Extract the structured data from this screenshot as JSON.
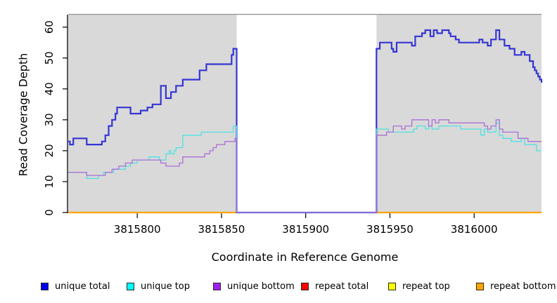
{
  "chart_data": {
    "type": "line",
    "subtype": "step-after",
    "title": "",
    "xlabel": "Coordinate in Reference Genome",
    "ylabel": "Read Coverage Depth",
    "xlim": [
      3815759,
      3816040
    ],
    "ylim": [
      0,
      64
    ],
    "xticks": [
      3815800,
      3815850,
      3815900,
      3815950,
      3816000
    ],
    "yticks": [
      0,
      10,
      20,
      30,
      40,
      50,
      60
    ],
    "grid": "off",
    "legend_position": "bottom",
    "background": {
      "shaded_color": "#d9d9d9",
      "shaded_regions": [
        [
          3815759,
          3815859
        ],
        [
          3815942,
          3816040
        ]
      ],
      "gap_region": [
        3815859,
        3815942
      ],
      "top_border_color": "#8f8f8f",
      "axis_color": "#000000"
    },
    "series": [
      {
        "name": "unique total",
        "legend_color": "#0000ee",
        "line_color": "#3535d4",
        "line_width": 2.2,
        "z": 4,
        "segments": [
          [
            [
              3815759,
              23
            ],
            [
              3815760,
              22
            ],
            [
              3815762,
              24
            ],
            [
              3815770,
              22
            ],
            [
              3815777,
              22
            ],
            [
              3815779,
              23
            ],
            [
              3815781,
              25
            ],
            [
              3815783,
              28
            ],
            [
              3815785,
              30
            ],
            [
              3815787,
              32
            ],
            [
              3815788,
              34
            ],
            [
              3815795,
              34
            ],
            [
              3815796,
              32
            ],
            [
              3815801,
              32
            ],
            [
              3815802,
              33
            ],
            [
              3815806,
              34
            ],
            [
              3815809,
              35
            ],
            [
              3815813,
              35
            ],
            [
              3815814,
              41
            ],
            [
              3815817,
              37
            ],
            [
              3815820,
              39
            ],
            [
              3815823,
              41
            ],
            [
              3815827,
              43
            ],
            [
              3815836,
              43
            ],
            [
              3815837,
              46
            ],
            [
              3815841,
              48
            ],
            [
              3815855,
              48
            ],
            [
              3815856,
              51
            ],
            [
              3815857,
              53
            ],
            [
              3815859,
              0
            ],
            [
              3815942,
              0
            ],
            [
              3815942,
              53
            ],
            [
              3815944,
              55
            ],
            [
              3815950,
              55
            ],
            [
              3815951,
              53
            ],
            [
              3815952,
              52
            ],
            [
              3815954,
              55
            ],
            [
              3815963,
              54
            ],
            [
              3815965,
              57
            ],
            [
              3815969,
              58
            ],
            [
              3815971,
              59
            ],
            [
              3815974,
              57
            ],
            [
              3815976,
              59
            ],
            [
              3815978,
              58
            ],
            [
              3815981,
              59
            ],
            [
              3815985,
              58
            ],
            [
              3815986,
              57
            ],
            [
              3815989,
              56
            ],
            [
              3815991,
              55
            ],
            [
              3816002,
              55
            ],
            [
              3816003,
              56
            ],
            [
              3816005,
              55
            ],
            [
              3816008,
              54
            ],
            [
              3816010,
              56
            ],
            [
              3816013,
              59
            ],
            [
              3816015,
              56
            ],
            [
              3816018,
              54
            ],
            [
              3816021,
              53
            ],
            [
              3816024,
              51
            ],
            [
              3816028,
              52
            ],
            [
              3816030,
              51
            ],
            [
              3816033,
              49
            ],
            [
              3816035,
              47
            ],
            [
              3816036,
              46
            ],
            [
              3816037,
              45
            ],
            [
              3816038,
              44
            ],
            [
              3816039,
              43
            ],
            [
              3816040,
              42
            ]
          ]
        ]
      },
      {
        "name": "unique top",
        "legend_color": "#00ffff",
        "line_color": "#4fe2e2",
        "line_width": 1.3,
        "z": 5,
        "segments": [
          [
            [
              3815759,
              13
            ],
            [
              3815770,
              11
            ],
            [
              3815777,
              12
            ],
            [
              3815780,
              13
            ],
            [
              3815786,
              14
            ],
            [
              3815793,
              15
            ],
            [
              3815796,
              16
            ],
            [
              3815800,
              17
            ],
            [
              3815807,
              18
            ],
            [
              3815813,
              17
            ],
            [
              3815817,
              19
            ],
            [
              3815819,
              20
            ],
            [
              3815820,
              19
            ],
            [
              3815822,
              20
            ],
            [
              3815823,
              21
            ],
            [
              3815827,
              25
            ],
            [
              3815838,
              26
            ],
            [
              3815856,
              26
            ],
            [
              3815857,
              28
            ],
            [
              3815859,
              0
            ],
            [
              3815942,
              0
            ],
            [
              3815942,
              27
            ],
            [
              3815949,
              26
            ],
            [
              3815960,
              26
            ],
            [
              3815964,
              27
            ],
            [
              3815966,
              28
            ],
            [
              3815971,
              27
            ],
            [
              3815973,
              28
            ],
            [
              3815975,
              27
            ],
            [
              3815979,
              28
            ],
            [
              3815990,
              28
            ],
            [
              3815992,
              27
            ],
            [
              3816000,
              27
            ],
            [
              3816002,
              27
            ],
            [
              3816004,
              25
            ],
            [
              3816006,
              27
            ],
            [
              3816008,
              26
            ],
            [
              3816012,
              26
            ],
            [
              3816013,
              29
            ],
            [
              3816015,
              25
            ],
            [
              3816017,
              24
            ],
            [
              3816022,
              23
            ],
            [
              3816028,
              24
            ],
            [
              3816030,
              22
            ],
            [
              3816033,
              22
            ],
            [
              3816037,
              20
            ],
            [
              3816040,
              20
            ]
          ]
        ]
      },
      {
        "name": "unique bottom",
        "legend_color": "#a020f0",
        "line_color": "#ab6fd6",
        "line_width": 1.3,
        "z": 6,
        "segments": [
          [
            [
              3815759,
              13
            ],
            [
              3815770,
              12
            ],
            [
              3815777,
              12
            ],
            [
              3815781,
              13
            ],
            [
              3815785,
              14
            ],
            [
              3815789,
              15
            ],
            [
              3815793,
              16
            ],
            [
              3815797,
              17
            ],
            [
              3815812,
              17
            ],
            [
              3815814,
              16
            ],
            [
              3815817,
              15
            ],
            [
              3815823,
              15
            ],
            [
              3815825,
              16
            ],
            [
              3815827,
              18
            ],
            [
              3815837,
              18
            ],
            [
              3815840,
              19
            ],
            [
              3815843,
              20
            ],
            [
              3815845,
              21
            ],
            [
              3815847,
              22
            ],
            [
              3815852,
              23
            ],
            [
              3815857,
              23
            ],
            [
              3815858,
              24
            ],
            [
              3815859,
              0
            ],
            [
              3815942,
              0
            ],
            [
              3815942,
              25
            ],
            [
              3815948,
              26
            ],
            [
              3815952,
              28
            ],
            [
              3815956,
              28
            ],
            [
              3815957,
              27
            ],
            [
              3815959,
              28
            ],
            [
              3815963,
              30
            ],
            [
              3815972,
              30
            ],
            [
              3815973,
              28
            ],
            [
              3815975,
              30
            ],
            [
              3815977,
              29
            ],
            [
              3815979,
              30
            ],
            [
              3815983,
              30
            ],
            [
              3815985,
              29
            ],
            [
              3815998,
              29
            ],
            [
              3816000,
              29
            ],
            [
              3816004,
              29
            ],
            [
              3816006,
              28
            ],
            [
              3816008,
              27
            ],
            [
              3816010,
              28
            ],
            [
              3816013,
              30
            ],
            [
              3816015,
              27
            ],
            [
              3816017,
              26
            ],
            [
              3816024,
              26
            ],
            [
              3816026,
              24
            ],
            [
              3816030,
              24
            ],
            [
              3816032,
              23
            ],
            [
              3816038,
              23
            ],
            [
              3816039,
              23
            ],
            [
              3816040,
              23
            ]
          ]
        ]
      },
      {
        "name": "repeat total",
        "legend_color": "#ff0000",
        "line_color": "#ff0000",
        "line_width": 1.3,
        "z": 1,
        "segments": [
          [
            [
              3815759,
              0
            ],
            [
              3815859,
              0
            ]
          ],
          [
            [
              3815942,
              0
            ],
            [
              3816040,
              0
            ]
          ]
        ]
      },
      {
        "name": "repeat top",
        "legend_color": "#ffff00",
        "line_color": "#ffff00",
        "line_width": 1.3,
        "z": 2,
        "segments": [
          [
            [
              3815759,
              0
            ],
            [
              3815859,
              0
            ]
          ],
          [
            [
              3815942,
              0
            ],
            [
              3816040,
              0
            ]
          ]
        ]
      },
      {
        "name": "repeat bottom",
        "legend_color": "#ffa500",
        "line_color": "#ffa500",
        "line_width": 2.2,
        "z": 3,
        "segments": [
          [
            [
              3815759,
              0
            ],
            [
              3815859,
              0
            ]
          ],
          [
            [
              3815942,
              0
            ],
            [
              3816040,
              0
            ]
          ]
        ]
      }
    ],
    "legend": [
      {
        "label": "unique total",
        "color": "#0000ee"
      },
      {
        "label": "unique top",
        "color": "#00ffff"
      },
      {
        "label": "unique bottom",
        "color": "#a020f0"
      },
      {
        "label": "repeat total",
        "color": "#ff0000"
      },
      {
        "label": "repeat top",
        "color": "#ffff00"
      },
      {
        "label": "repeat bottom",
        "color": "#ffa500"
      }
    ]
  }
}
